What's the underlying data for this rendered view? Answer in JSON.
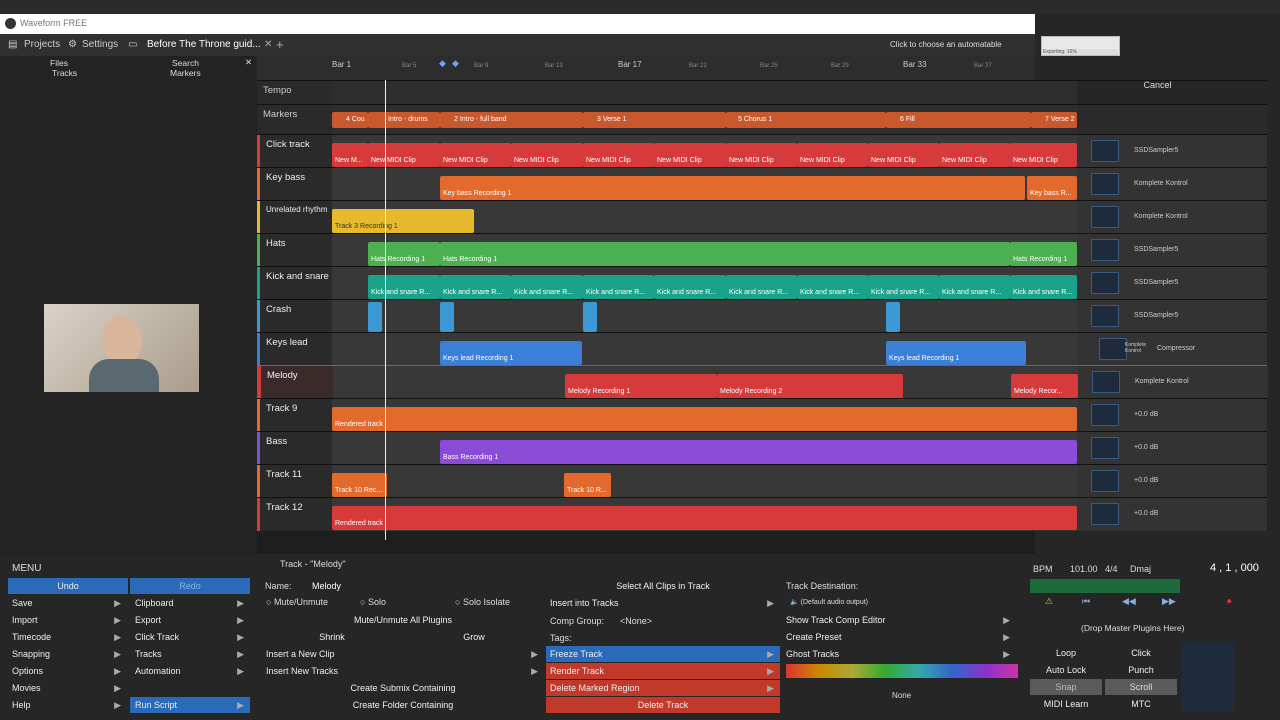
{
  "window_title": "Waveform FREE",
  "tabs": {
    "projects": "Projects",
    "settings": "Settings",
    "project_name": "Before The Throne guid..."
  },
  "hint": "Click to choose an automatable parameter, o",
  "export": {
    "label": "Exporting: 16%",
    "progress": 0.16,
    "cancel": "Cancel"
  },
  "sidebar": {
    "files": "Files",
    "tracks": "Tracks",
    "search": "Search",
    "markers": "Markers"
  },
  "ruler": {
    "bar1": "Bar 1",
    "bar5": "Bar 5",
    "bar9": "Bar 9",
    "bar13": "Bar 13",
    "bar17": "Bar 17",
    "bar21": "Bar 21",
    "bar25": "Bar 25",
    "bar29": "Bar 29",
    "bar33": "Bar 33",
    "bar37": "Bar 37"
  },
  "tempo_label": "Tempo",
  "markers": {
    "label": "Markers",
    "m1": "4 Cou",
    "m2": "Intro - drums",
    "m3": "2 Intro - full band",
    "m4": "3 Verse 1",
    "m5": "5 Chorus 1",
    "m6": "6 Fill",
    "m7": "7 Verse 2"
  },
  "tracks": [
    {
      "name": "Click track",
      "clip": "New MIDI Clip",
      "clip_first": "New M...",
      "plugin": "SSDSampler5"
    },
    {
      "name": "Key bass",
      "clip": "Key bass Recording 1",
      "clip_end": "Key bass R...",
      "plugin": "Komplete Kontrol"
    },
    {
      "name": "Unrelated rhythm",
      "clip": "Track 3 Recording 1",
      "plugin": "Komplete Kontrol"
    },
    {
      "name": "Hats",
      "clip": "Hats Recording 1",
      "plugin": "SSDSampler5"
    },
    {
      "name": "Kick and snare",
      "clip": "Kick and snare R...",
      "plugin": "SSDSampler5"
    },
    {
      "name": "Crash",
      "clip": "",
      "plugin": "SSDSampler5"
    },
    {
      "name": "Keys lead",
      "clip": "Keys lead Recording 1",
      "plugin": "Komplete Kontrol",
      "plugin2": "Compressor"
    },
    {
      "name": "Melody",
      "clip": "Melody Recording 1",
      "clip2": "Melody Recording 2",
      "clip_end": "Melody Recor...",
      "plugin": "Komplete Kontrol"
    },
    {
      "name": "Track 9",
      "clip": "Rendered track",
      "plugin": "+0.0 dB"
    },
    {
      "name": "Bass",
      "clip": "Bass Recording 1",
      "plugin": "+0.0 dB"
    },
    {
      "name": "Track 11",
      "clip": "Track 10 Rec...",
      "clip2": "Track 10 R...",
      "plugin": "+0.0 dB"
    },
    {
      "name": "Track 12",
      "clip": "Rendered track",
      "plugin": "+0.0 dB"
    }
  ],
  "menu": {
    "title": "MENU",
    "undo": "Undo",
    "redo": "Redo",
    "left": [
      "Save",
      "Import",
      "Timecode",
      "Snapping",
      "Options",
      "Movies",
      "Help"
    ],
    "right": [
      "Clipboard",
      "Export",
      "Click Track",
      "Tracks",
      "Automation",
      "Run Script"
    ]
  },
  "track_panel": {
    "title": "Track - \"Melody\"",
    "name_label": "Name:",
    "name_value": "Melody",
    "mute": "Mute/Unmute",
    "solo": "Solo",
    "solo_isolate": "Solo Isolate",
    "mute_all": "Mute/Unmute All Plugins",
    "shrink": "Shrink",
    "grow": "Grow",
    "insert_clip": "Insert a New Clip",
    "insert_tracks": "Insert New Tracks",
    "create_submix": "Create Submix Containing",
    "create_folder": "Create Folder Containing",
    "select_all": "Select All Clips in Track",
    "insert_into": "Insert into Tracks",
    "comp_group": "Comp Group:",
    "comp_value": "<None>",
    "tags": "Tags:",
    "freeze": "Freeze Track",
    "render": "Render Track",
    "delete_region": "Delete Marked Region",
    "delete_track": "Delete Track",
    "destination": "Track Destination:",
    "dest_value": "(Default audio output)",
    "show_comp": "Show Track Comp Editor",
    "create_preset": "Create Preset",
    "ghost": "Ghost Tracks",
    "none": "None"
  },
  "transport": {
    "bpm_label": "BPM",
    "bpm": "101.00",
    "sig": "4/4",
    "key": "Dmaj",
    "position": "4 , 1 , 000",
    "drop": "(Drop Master Plugins Here)",
    "loop": "Loop",
    "click": "Click",
    "auto_lock": "Auto Lock",
    "punch": "Punch",
    "snap": "Snap",
    "scroll": "Scroll",
    "midi_learn": "MIDI Learn",
    "mtc": "MTC"
  },
  "colors": {
    "accent": "#2a6ab8",
    "red": "#d63a3a",
    "orange": "#e26a2c",
    "green": "#4caf50",
    "teal": "#1aa38a",
    "blue": "#3b7fd6",
    "purple": "#8a4bd6",
    "yellow": "#e7b92c"
  }
}
